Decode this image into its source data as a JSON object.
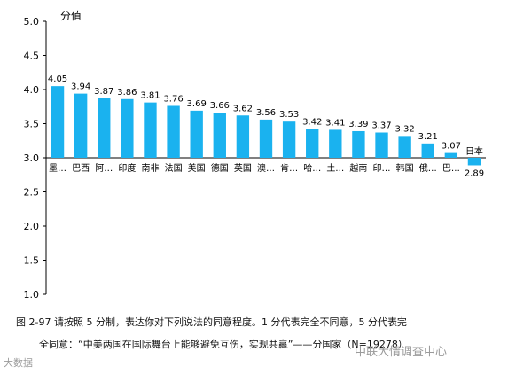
{
  "chart_data": {
    "type": "bar",
    "ylabel": "分值",
    "ylim": [
      1.0,
      5.0
    ],
    "baseline": 3.0,
    "yticks": [
      "1.0",
      "1.5",
      "2.0",
      "2.5",
      "3.0",
      "3.5",
      "4.0",
      "4.5",
      "5.0"
    ],
    "bar_color": "#1ab2ef",
    "grid": false,
    "categories": [
      "墨…",
      "巴西",
      "阿…",
      "印度",
      "南非",
      "法国",
      "美国",
      "德国",
      "英国",
      "澳…",
      "肯…",
      "哈…",
      "土…",
      "越南",
      "印…",
      "韩国",
      "俄…",
      "巴…",
      "日本"
    ],
    "values": [
      4.05,
      3.94,
      3.87,
      3.86,
      3.81,
      3.76,
      3.69,
      3.66,
      3.62,
      3.56,
      3.53,
      3.42,
      3.41,
      3.39,
      3.37,
      3.32,
      3.21,
      3.07,
      2.89
    ],
    "value_labels": [
      "4.05",
      "3.94",
      "3.87",
      "3.86",
      "3.81",
      "3.76",
      "3.69",
      "3.66",
      "3.62",
      "3.56",
      "3.53",
      "3.42",
      "3.41",
      "3.39",
      "3.37",
      "3.32",
      "3.21",
      "3.07",
      "2.89"
    ]
  },
  "caption": {
    "line1": "图 2-97   请按照 5 分制，表达你对下列说法的同意程度。1 分代表完全不同意，5 分代表完",
    "line2": "全同意：“中美两国在国际舞台上能够避免互伤，实现共赢”——分国家（N=19278）"
  },
  "watermark": {
    "left": "大数据",
    "right": "中联大情调查中心"
  }
}
